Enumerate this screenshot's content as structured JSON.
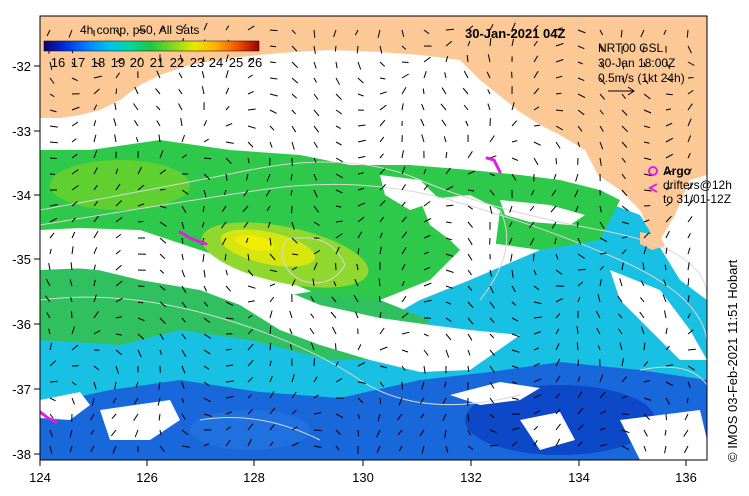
{
  "map": {
    "date_label": "30-Jan-2021 04Z",
    "x_ticks": [
      "124",
      "126",
      "128",
      "130",
      "132",
      "134",
      "136"
    ],
    "y_ticks": [
      "-32",
      "-33",
      "-34",
      "-35",
      "-36",
      "-37",
      "-38"
    ]
  },
  "colorbar": {
    "title": "4h comp, p50, All Sats",
    "labels": [
      "16",
      "17",
      "18",
      "19",
      "20",
      "21",
      "22",
      "23",
      "24",
      "25",
      "26"
    ],
    "colors": [
      "#10006a",
      "#0030e0",
      "#0080ff",
      "#00c0f0",
      "#00d8a0",
      "#20c840",
      "#80d820",
      "#e8e800",
      "#ffb000",
      "#f05000",
      "#a00000"
    ]
  },
  "currents_legend": {
    "line1": "NRT00 GSL",
    "line2": "30-Jan 18:00Z",
    "line3": "0.5m/s (1kt 24h)"
  },
  "argo_legend": {
    "argo": "Argo",
    "drifters": "drifters@12h",
    "to": "to 31/01-12Z"
  },
  "credit": "© IMOS 03-Feb-2021 11:51 Hobart",
  "palette": {
    "land": "#fcc896",
    "warm_core": "#e0e810",
    "green": "#2ec84a",
    "cyan": "#12c0e6",
    "blue": "#1060dc",
    "drifter": "#e020e0"
  }
}
